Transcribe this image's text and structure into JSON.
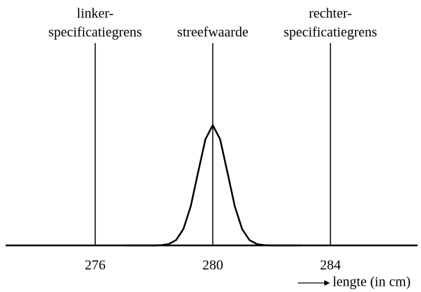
{
  "chart_data": {
    "type": "line",
    "x_label": "lengte (in cm)",
    "x": [
      277,
      277.25,
      277.5,
      277.75,
      278,
      278.25,
      278.5,
      278.75,
      279,
      279.25,
      279.5,
      279.75,
      280,
      280.25,
      280.5,
      280.75,
      281,
      281.25,
      281.5,
      281.75,
      282,
      282.25,
      282.5,
      282.75,
      283
    ],
    "series": [
      {
        "color": "#000000",
        "values": [
          0,
          0,
          0,
          0.0003,
          0.0003,
          0.0022,
          0.0111,
          0.0439,
          0.1353,
          0.3247,
          0.6065,
          0.8825,
          1,
          0.8825,
          0.6065,
          0.3247,
          0.1353,
          0.0439,
          0.0111,
          0.0022,
          0.0003,
          0.0003,
          0,
          0,
          0
        ]
      }
    ],
    "xlim": [
      273,
      287
    ],
    "ylim": [
      0,
      1
    ],
    "xticks": [
      276,
      280,
      284
    ],
    "reference_lines": [
      {
        "x": 276,
        "label": [
          "linker-",
          "specificatiegrens"
        ]
      },
      {
        "x": 280,
        "label": [
          "streefwaarde"
        ]
      },
      {
        "x": 284,
        "label": [
          "rechter-",
          "specificatiegrens"
        ]
      }
    ]
  }
}
